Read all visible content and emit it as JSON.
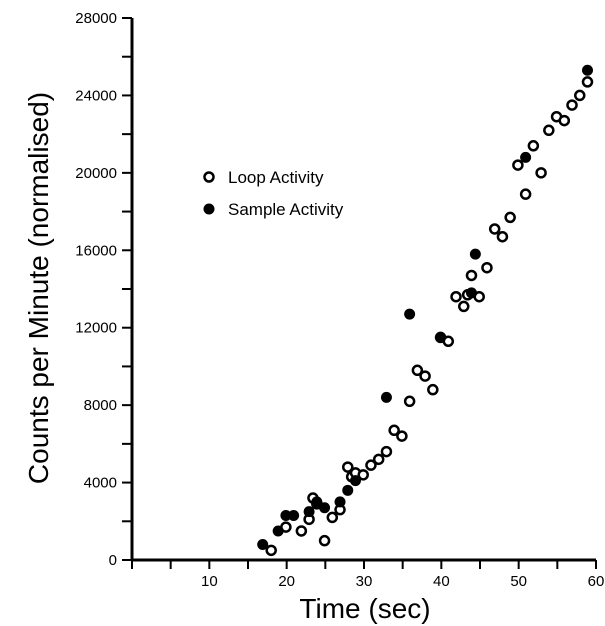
{
  "chart_data": {
    "type": "scatter",
    "title": "",
    "xlabel": "Time (sec)",
    "ylabel": "Counts per Minute (normalised)",
    "xlim": [
      0,
      60
    ],
    "ylim": [
      0,
      28000
    ],
    "x_ticks": [
      0,
      5,
      10,
      15,
      20,
      25,
      30,
      35,
      40,
      45,
      50,
      55,
      60
    ],
    "x_tick_labels": [
      "10",
      "20",
      "30",
      "40",
      "50",
      "60"
    ],
    "x_tick_label_values": [
      10,
      20,
      30,
      40,
      50,
      60
    ],
    "y_ticks": [
      0,
      2000,
      4000,
      6000,
      8000,
      10000,
      12000,
      14000,
      16000,
      18000,
      20000,
      22000,
      24000,
      26000,
      28000
    ],
    "y_tick_labels": [
      "0",
      "4000",
      "8000",
      "12000",
      "16000",
      "20000",
      "24000",
      "28000"
    ],
    "y_tick_label_values": [
      0,
      4000,
      8000,
      12000,
      16000,
      20000,
      24000,
      28000
    ],
    "grid": false,
    "legend_position": "upper-left",
    "series": [
      {
        "name": "Loop Activity",
        "marker": "open-circle",
        "color": "#000000",
        "points": [
          [
            18.0,
            500
          ],
          [
            19.9,
            1700
          ],
          [
            21.9,
            1500
          ],
          [
            22.9,
            2100
          ],
          [
            23.4,
            3200
          ],
          [
            23.9,
            2900
          ],
          [
            24.9,
            1000
          ],
          [
            25.9,
            2200
          ],
          [
            26.9,
            2600
          ],
          [
            27.9,
            4800
          ],
          [
            28.4,
            4300
          ],
          [
            28.9,
            4500
          ],
          [
            29.9,
            4400
          ],
          [
            30.9,
            4900
          ],
          [
            31.9,
            5200
          ],
          [
            32.9,
            5600
          ],
          [
            33.9,
            6700
          ],
          [
            34.9,
            6400
          ],
          [
            35.9,
            8200
          ],
          [
            36.9,
            9800
          ],
          [
            37.9,
            9500
          ],
          [
            38.9,
            8800
          ],
          [
            39.9,
            11500
          ],
          [
            40.9,
            11300
          ],
          [
            41.9,
            13600
          ],
          [
            42.9,
            13100
          ],
          [
            43.4,
            13700
          ],
          [
            43.9,
            14700
          ],
          [
            44.9,
            13600
          ],
          [
            45.9,
            15100
          ],
          [
            46.9,
            17100
          ],
          [
            47.9,
            16700
          ],
          [
            48.9,
            17700
          ],
          [
            49.9,
            20400
          ],
          [
            50.9,
            18900
          ],
          [
            51.9,
            21400
          ],
          [
            52.9,
            20000
          ],
          [
            53.9,
            22200
          ],
          [
            54.9,
            22900
          ],
          [
            55.9,
            22700
          ],
          [
            56.9,
            23500
          ],
          [
            57.9,
            24000
          ],
          [
            58.9,
            24700
          ]
        ]
      },
      {
        "name": "Sample Activity",
        "marker": "filled-circle",
        "color": "#000000",
        "points": [
          [
            16.9,
            800
          ],
          [
            18.9,
            1500
          ],
          [
            19.9,
            2300
          ],
          [
            20.9,
            2300
          ],
          [
            22.9,
            2500
          ],
          [
            23.9,
            3000
          ],
          [
            24.9,
            2700
          ],
          [
            26.9,
            3000
          ],
          [
            27.9,
            3600
          ],
          [
            28.9,
            4100
          ],
          [
            32.9,
            8400
          ],
          [
            35.9,
            12700
          ],
          [
            39.9,
            11500
          ],
          [
            43.9,
            13800
          ],
          [
            44.4,
            15800
          ],
          [
            50.9,
            20800
          ],
          [
            58.9,
            25300
          ]
        ]
      }
    ]
  }
}
